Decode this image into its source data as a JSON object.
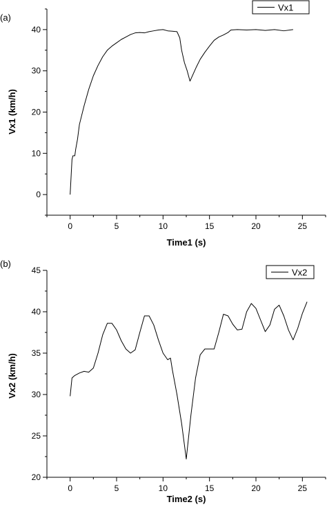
{
  "chart_data": [
    {
      "type": "line",
      "panel_label": "(a)",
      "xlabel": "Time1 (s)",
      "ylabel": "Vx1 (km/h)",
      "xlim": [
        -2.5,
        27.5
      ],
      "ylim": [
        -5,
        45
      ],
      "xticks": [
        0,
        5,
        10,
        15,
        20,
        25
      ],
      "yticks": [
        0,
        10,
        20,
        30,
        40
      ],
      "grid": false,
      "legend_position": "top-right",
      "series": [
        {
          "name": "Vx1",
          "color": "#000000",
          "x": [
            0,
            0.2,
            0.3,
            0.5,
            0.6,
            0.8,
            1,
            1.5,
            2,
            2.5,
            3,
            3.5,
            4,
            4.5,
            5,
            5.5,
            6,
            6.5,
            7,
            7.5,
            8,
            8.5,
            9,
            9.5,
            10,
            10.5,
            11,
            11.5,
            11.8,
            12,
            12.3,
            12.6,
            12.9,
            13.1,
            13.3,
            13.6,
            14,
            14.5,
            15,
            15.5,
            16,
            16.5,
            17,
            17.3,
            18,
            19,
            20,
            21,
            22,
            23,
            24
          ],
          "y": [
            0,
            8.5,
            9.4,
            9.4,
            11,
            13.5,
            17,
            21.5,
            25.5,
            28.8,
            31.3,
            33.4,
            35,
            36,
            36.8,
            37.6,
            38.2,
            38.8,
            39.2,
            39.3,
            39.2,
            39.5,
            39.7,
            39.9,
            40,
            39.7,
            39.6,
            39.5,
            38,
            35,
            32,
            30,
            27.5,
            28.5,
            29.5,
            31,
            32.8,
            34.5,
            36,
            37.4,
            38.2,
            38.7,
            39.3,
            39.9,
            40,
            39.9,
            40,
            39.8,
            40,
            39.7,
            40
          ]
        }
      ]
    },
    {
      "type": "line",
      "panel_label": "(b)",
      "xlabel": "Time2 (s)",
      "ylabel": "Vx2 (km/h)",
      "xlim": [
        -2.5,
        27.5
      ],
      "ylim": [
        20,
        45
      ],
      "xticks": [
        0,
        5,
        10,
        15,
        20,
        25
      ],
      "yticks": [
        20,
        25,
        30,
        35,
        40,
        45
      ],
      "grid": false,
      "legend_position": "top-right",
      "series": [
        {
          "name": "Vx2",
          "color": "#000000",
          "x": [
            0,
            0.2,
            0.5,
            1,
            1.5,
            2,
            2.5,
            3,
            3.5,
            4,
            4.5,
            5,
            5.5,
            6,
            6.5,
            7,
            7.5,
            8,
            8.5,
            9,
            9.5,
            10,
            10.5,
            10.8,
            11,
            11.5,
            12,
            12.5,
            13,
            13.5,
            14,
            14.5,
            15,
            15.5,
            16,
            16.5,
            17,
            17.5,
            18,
            18.5,
            19,
            19.5,
            20,
            20.5,
            21,
            21.5,
            22,
            22.5,
            23,
            23.5,
            24,
            24.5,
            25,
            25.5
          ],
          "y": [
            29.8,
            32,
            32.3,
            32.6,
            32.8,
            32.7,
            33.2,
            35,
            37.2,
            38.6,
            38.6,
            37.8,
            36.5,
            35.5,
            35,
            35.4,
            37.5,
            39.5,
            39.5,
            38.4,
            36.6,
            35,
            34.2,
            34.4,
            33,
            30,
            26.5,
            22.2,
            27.5,
            32,
            34.8,
            35.5,
            35.5,
            35.5,
            37.5,
            39.7,
            39.5,
            38.5,
            37.8,
            37.9,
            40,
            41,
            40.4,
            39,
            37.6,
            38.4,
            40.3,
            40.8,
            39.5,
            37.8,
            36.6,
            38,
            39.8,
            41.2
          ]
        }
      ]
    }
  ]
}
